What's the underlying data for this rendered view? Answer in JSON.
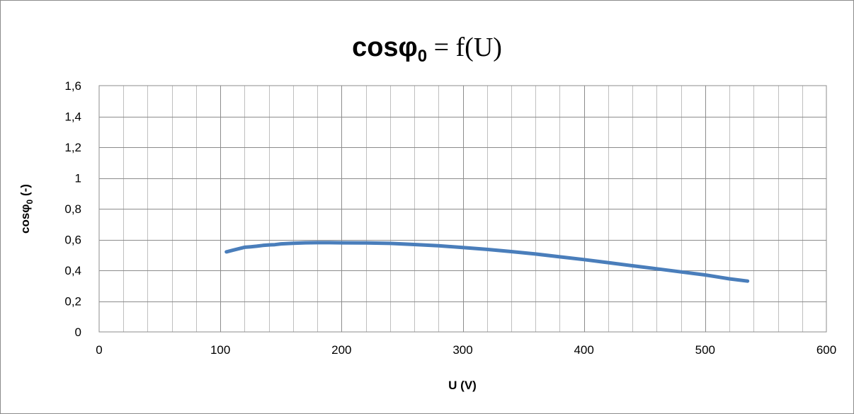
{
  "chart_data": {
    "type": "line",
    "title_parts": {
      "base": "cosφ",
      "subscript": "0",
      "rest": " = f(U)"
    },
    "ylabel_parts": {
      "base": "cosφ",
      "subscript": "0",
      "rest": " (-)"
    },
    "xlabel": "U (V)",
    "xlim": [
      0,
      600
    ],
    "ylim": [
      0,
      1.6
    ],
    "x_major_step": 100,
    "x_minor_step": 20,
    "y_major_step": 0.2,
    "xticks": [
      "0",
      "100",
      "200",
      "300",
      "400",
      "500",
      "600"
    ],
    "yticks": [
      "0",
      "0,2",
      "0,4",
      "0,6",
      "0,8",
      "1",
      "1,2",
      "1,4",
      "1,6"
    ],
    "grid": true,
    "legend": "none",
    "series_color": "#4a7ebb",
    "series": [
      {
        "x": [
          105,
          110,
          115,
          120,
          125,
          130,
          135,
          140,
          145,
          150,
          160,
          170,
          180,
          190,
          200,
          220,
          240,
          260,
          280,
          300,
          320,
          340,
          360,
          380,
          400,
          420,
          440,
          460,
          480,
          500,
          520,
          535
        ],
        "y": [
          0.52,
          0.53,
          0.54,
          0.55,
          0.553,
          0.557,
          0.562,
          0.565,
          0.567,
          0.572,
          0.576,
          0.579,
          0.58,
          0.58,
          0.579,
          0.578,
          0.575,
          0.568,
          0.56,
          0.548,
          0.536,
          0.522,
          0.506,
          0.488,
          0.47,
          0.45,
          0.43,
          0.41,
          0.39,
          0.37,
          0.345,
          0.33
        ]
      }
    ]
  }
}
